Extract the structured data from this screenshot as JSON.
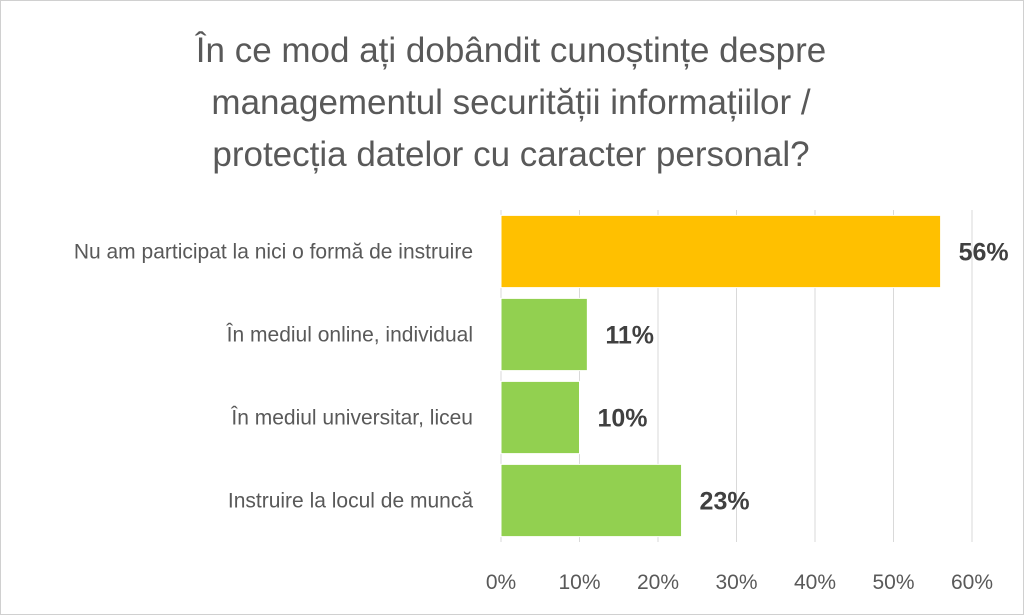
{
  "chart_data": {
    "type": "bar",
    "orientation": "horizontal",
    "title": "În ce mod ați dobândit cunoștințe despre managementul securității informațiilor / protecția datelor cu caracter personal?",
    "title_lines": [
      "În ce mod ați dobândit cunoștințe despre",
      "managementul securității informațiilor /",
      "protecția datelor cu caracter personal?"
    ],
    "categories": [
      "Nu am participat la nici o formă de instruire",
      "În mediul online, individual",
      "În mediul universitar, liceu",
      "Instruire la locul de muncă"
    ],
    "values": [
      56,
      11,
      10,
      23
    ],
    "data_labels": [
      "56%",
      "11%",
      "10%",
      "23%"
    ],
    "bar_colors": [
      "#FFC000",
      "#92D050",
      "#92D050",
      "#92D050"
    ],
    "xlim": [
      0,
      60
    ],
    "xticks": [
      0,
      10,
      20,
      30,
      40,
      50,
      60
    ],
    "xtick_labels": [
      "0%",
      "10%",
      "20%",
      "30%",
      "40%",
      "50%",
      "60%"
    ],
    "xlabel": "",
    "ylabel": "",
    "grid": true,
    "legend": "none"
  },
  "colors": {
    "gridline": "#d9d9d9",
    "text": "#595959",
    "data_label": "#404040",
    "bar_edge": "#ffffff"
  }
}
